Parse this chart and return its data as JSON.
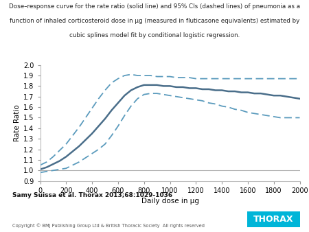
{
  "title_line1": "Dose–response curve for the rate ratio (solid line) and 95% CIs (dashed lines) of pneumonia as a",
  "title_line2": "function of inhaled corticosteroid dose in μg (measured in fluticasone equivalents) estimated by",
  "title_line3": "cubic splines model fit by conditional logistic regression.",
  "xlabel": "Daily dose in μg",
  "ylabel": "Rate Ratio",
  "xlim": [
    0,
    2000
  ],
  "ylim": [
    0.9,
    2.0
  ],
  "yticks": [
    0.9,
    1.0,
    1.1,
    1.2,
    1.3,
    1.4,
    1.5,
    1.6,
    1.7,
    1.8,
    1.9,
    2.0
  ],
  "xticks": [
    0,
    200,
    400,
    600,
    800,
    1000,
    1200,
    1400,
    1600,
    1800,
    2000
  ],
  "line_color": "#4a6e8a",
  "ci_color": "#5b9bbd",
  "reference_line_y": 1.0,
  "reference_line_color": "#b0b0b0",
  "citation": "Samy Suissa et al. Thorax 2013;68:1029-1036",
  "copyright": "Copyright © BMJ Publishing Group Ltd & British Thoracic Society  All rights reserved",
  "thorax_bg": "#00b5d8",
  "thorax_text": "THORAX",
  "background_color": "#ffffff",
  "dose_x": [
    0,
    50,
    100,
    150,
    200,
    250,
    300,
    350,
    400,
    450,
    500,
    550,
    600,
    650,
    700,
    750,
    800,
    850,
    900,
    950,
    1000,
    1050,
    1100,
    1150,
    1200,
    1250,
    1300,
    1350,
    1400,
    1450,
    1500,
    1550,
    1600,
    1650,
    1700,
    1750,
    1800,
    1850,
    1900,
    1950,
    2000
  ],
  "main_y": [
    1.01,
    1.03,
    1.06,
    1.09,
    1.13,
    1.18,
    1.23,
    1.29,
    1.35,
    1.42,
    1.49,
    1.57,
    1.64,
    1.71,
    1.76,
    1.79,
    1.81,
    1.81,
    1.81,
    1.8,
    1.8,
    1.79,
    1.79,
    1.78,
    1.78,
    1.77,
    1.77,
    1.76,
    1.76,
    1.75,
    1.75,
    1.74,
    1.74,
    1.73,
    1.73,
    1.72,
    1.71,
    1.71,
    1.7,
    1.69,
    1.68
  ],
  "upper_y": [
    1.05,
    1.08,
    1.13,
    1.19,
    1.25,
    1.33,
    1.41,
    1.5,
    1.59,
    1.68,
    1.76,
    1.83,
    1.87,
    1.9,
    1.91,
    1.9,
    1.9,
    1.9,
    1.89,
    1.89,
    1.89,
    1.88,
    1.88,
    1.88,
    1.87,
    1.87,
    1.87,
    1.87,
    1.87,
    1.87,
    1.87,
    1.87,
    1.87,
    1.87,
    1.87,
    1.87,
    1.87,
    1.87,
    1.87,
    1.87,
    1.87
  ],
  "lower_y": [
    0.98,
    0.99,
    1.0,
    1.01,
    1.02,
    1.05,
    1.08,
    1.12,
    1.16,
    1.2,
    1.25,
    1.33,
    1.42,
    1.52,
    1.61,
    1.68,
    1.72,
    1.73,
    1.73,
    1.72,
    1.71,
    1.7,
    1.69,
    1.68,
    1.67,
    1.66,
    1.64,
    1.63,
    1.61,
    1.6,
    1.58,
    1.57,
    1.55,
    1.54,
    1.53,
    1.52,
    1.51,
    1.5,
    1.5,
    1.5,
    1.5
  ]
}
